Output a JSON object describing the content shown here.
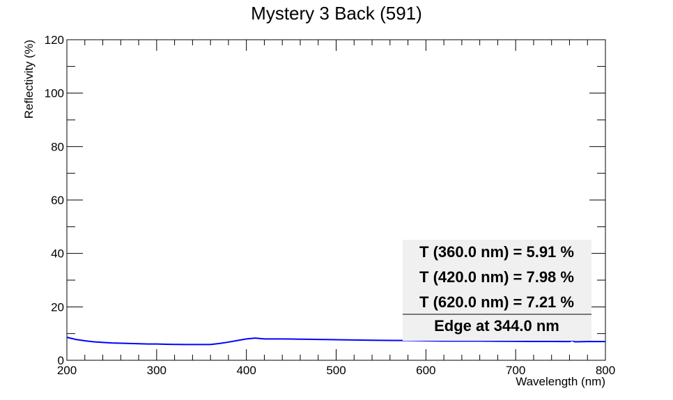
{
  "chart_data": {
    "type": "line",
    "title": "Mystery 3 Back (591)",
    "xlabel": "Wavelength (nm)",
    "ylabel": "Reflectivity (%)",
    "xlim": [
      200,
      800
    ],
    "ylim": [
      0,
      120
    ],
    "x_ticks": [
      200,
      300,
      400,
      500,
      600,
      700,
      800
    ],
    "y_ticks": [
      0,
      20,
      40,
      60,
      80,
      100,
      120
    ],
    "line_color": "#0000ff",
    "legend_position": "bottom-right",
    "legend_background": "#f0f0f0",
    "annotations": [
      "T (360.0 nm) = 5.91 %",
      "T (420.0 nm) = 7.98 %",
      "T (620.0 nm) = 7.21 %",
      "Edge at 344.0 nm"
    ],
    "series": [
      {
        "x": [
          200,
          210,
          220,
          230,
          240,
          250,
          260,
          270,
          280,
          290,
          300,
          310,
          320,
          330,
          340,
          350,
          360,
          370,
          380,
          390,
          400,
          410,
          420,
          430,
          440,
          450,
          460,
          470,
          480,
          490,
          500,
          520,
          540,
          560,
          580,
          600,
          620,
          640,
          660,
          680,
          700,
          720,
          740,
          760,
          763,
          766,
          780,
          800
        ],
        "y": [
          8.6,
          7.8,
          7.3,
          6.9,
          6.7,
          6.5,
          6.4,
          6.3,
          6.2,
          6.1,
          6.1,
          6.0,
          5.95,
          5.9,
          5.9,
          5.9,
          5.91,
          6.3,
          6.8,
          7.4,
          8.0,
          8.3,
          7.98,
          8.0,
          8.0,
          7.95,
          7.9,
          7.85,
          7.8,
          7.75,
          7.7,
          7.6,
          7.5,
          7.45,
          7.4,
          7.3,
          7.21,
          7.2,
          7.2,
          7.15,
          7.1,
          7.05,
          7.05,
          7.0,
          7.4,
          6.9,
          7.0,
          7.0
        ]
      }
    ]
  }
}
